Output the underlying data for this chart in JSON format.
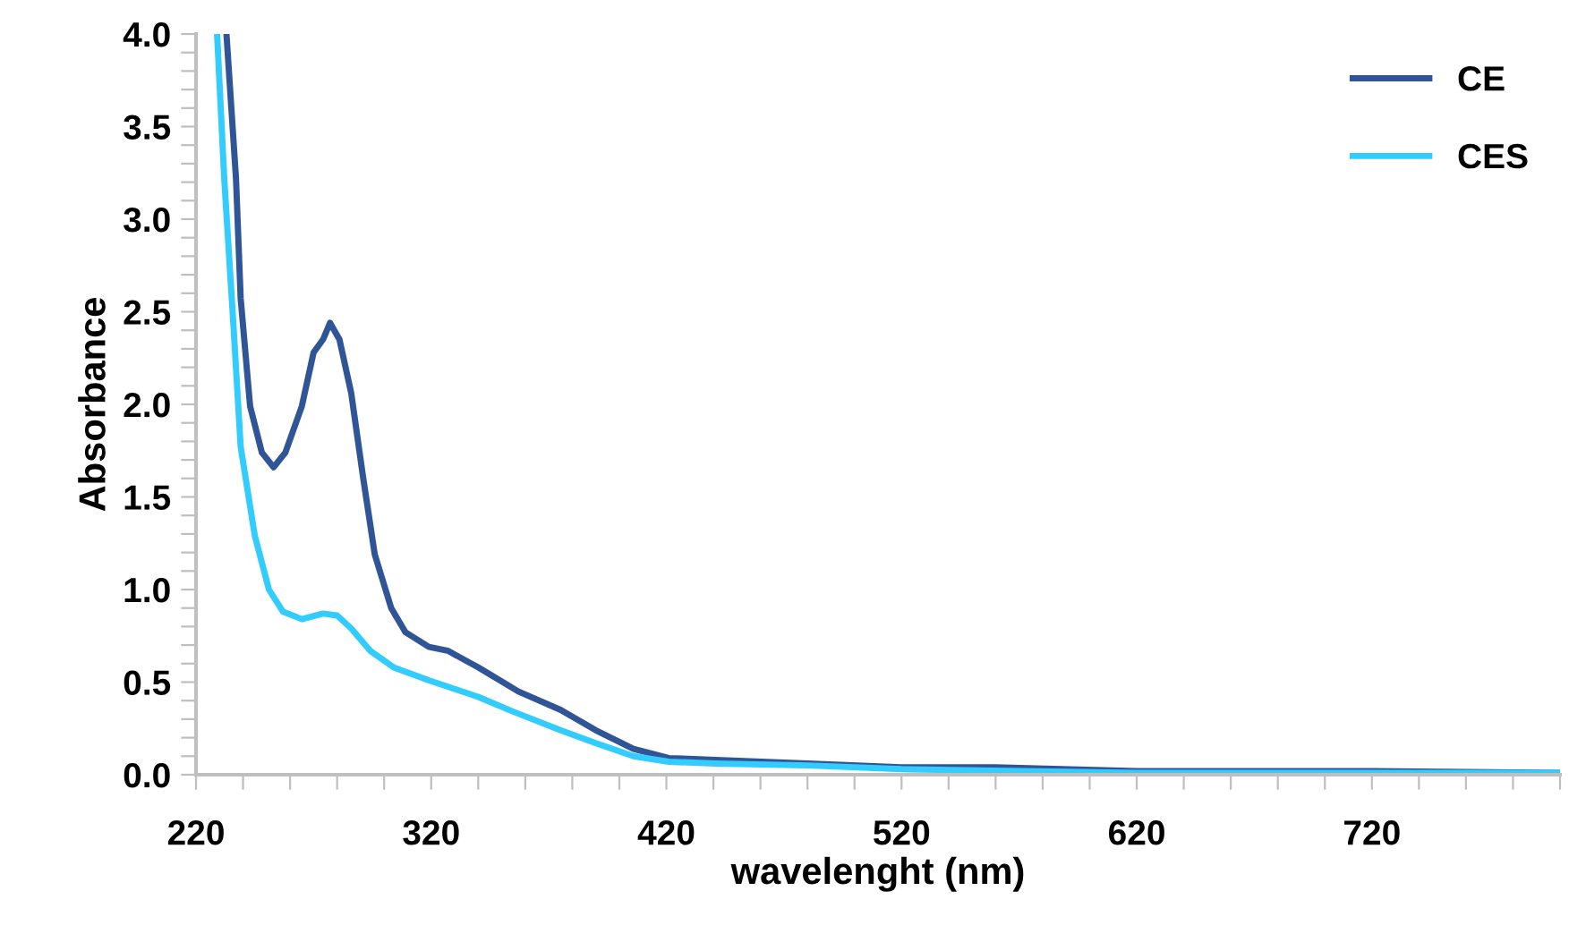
{
  "chart_data": {
    "type": "line",
    "xlabel": "wavelenght (nm)",
    "ylabel": "Absorbance",
    "xlim": [
      220,
      800
    ],
    "ylim": [
      0,
      4.0
    ],
    "xticks": [
      220,
      {
        "value": 240,
        "label": null
      },
      {
        "value": 260,
        "label": null
      },
      {
        "value": 280,
        "label": null
      },
      {
        "value": 300,
        "label": null
      },
      320,
      {
        "value": 340,
        "label": null
      },
      {
        "value": 360,
        "label": null
      },
      {
        "value": 380,
        "label": null
      },
      {
        "value": 400,
        "label": null
      },
      420,
      {
        "value": 440,
        "label": null
      },
      {
        "value": 460,
        "label": null
      },
      {
        "value": 480,
        "label": null
      },
      {
        "value": 500,
        "label": null
      },
      520,
      {
        "value": 540,
        "label": null
      },
      {
        "value": 560,
        "label": null
      },
      {
        "value": 580,
        "label": null
      },
      {
        "value": 600,
        "label": null
      },
      620,
      {
        "value": 640,
        "label": null
      },
      {
        "value": 660,
        "label": null
      },
      {
        "value": 680,
        "label": null
      },
      {
        "value": 700,
        "label": null
      },
      720,
      {
        "value": 740,
        "label": null
      },
      {
        "value": 760,
        "label": null
      },
      {
        "value": 780,
        "label": null
      },
      {
        "value": 800,
        "label": null
      }
    ],
    "yticks": [
      {
        "value": 0,
        "label": "0.0"
      },
      {
        "value": 0.1,
        "label": null
      },
      {
        "value": 0.2,
        "label": null
      },
      {
        "value": 0.3,
        "label": null
      },
      {
        "value": 0.4,
        "label": null
      },
      0.5,
      {
        "value": 0.6,
        "label": null
      },
      {
        "value": 0.7,
        "label": null
      },
      {
        "value": 0.8,
        "label": null
      },
      {
        "value": 0.9,
        "label": null
      },
      {
        "value": 1,
        "label": "1.0"
      },
      {
        "value": 1.1,
        "label": null
      },
      {
        "value": 1.2,
        "label": null
      },
      {
        "value": 1.3,
        "label": null
      },
      {
        "value": 1.4,
        "label": null
      },
      1.5,
      {
        "value": 1.6,
        "label": null
      },
      {
        "value": 1.7,
        "label": null
      },
      {
        "value": 1.8,
        "label": null
      },
      {
        "value": 1.9,
        "label": null
      },
      {
        "value": 2,
        "label": "2.0"
      },
      {
        "value": 2.1,
        "label": null
      },
      {
        "value": 2.2,
        "label": null
      },
      {
        "value": 2.3,
        "label": null
      },
      {
        "value": 2.4,
        "label": null
      },
      2.5,
      {
        "value": 2.6,
        "label": null
      },
      {
        "value": 2.7,
        "label": null
      },
      {
        "value": 2.8,
        "label": null
      },
      {
        "value": 2.9,
        "label": null
      },
      {
        "value": 3,
        "label": "3.0"
      },
      {
        "value": 3.1,
        "label": null
      },
      {
        "value": 3.2,
        "label": null
      },
      {
        "value": 3.3,
        "label": null
      },
      {
        "value": 3.4,
        "label": null
      },
      3.5,
      {
        "value": 3.6,
        "label": null
      },
      {
        "value": 3.7,
        "label": null
      },
      {
        "value": 3.8,
        "label": null
      },
      {
        "value": 3.9,
        "label": null
      },
      {
        "value": 4,
        "label": "4.0"
      }
    ],
    "grid": false,
    "legend": "top right",
    "marker": "none",
    "line_style": "solid",
    "series": [
      {
        "name": "CE",
        "color": "#2f5597",
        "x": [
          233,
          237,
          239,
          243,
          248,
          253,
          258,
          265,
          270,
          274,
          277,
          281,
          286,
          291,
          296,
          303,
          309,
          319,
          327,
          340,
          357,
          375,
          390,
          406,
          421,
          441,
          480,
          520,
          560,
          620,
          720,
          800
        ],
        "values": [
          3.99,
          3.22,
          2.57,
          1.99,
          1.74,
          1.66,
          1.74,
          1.99,
          2.28,
          2.35,
          2.44,
          2.35,
          2.06,
          1.61,
          1.19,
          0.9,
          0.77,
          0.69,
          0.67,
          0.58,
          0.45,
          0.35,
          0.24,
          0.14,
          0.09,
          0.08,
          0.06,
          0.04,
          0.04,
          0.02,
          0.02,
          0.01
        ]
      },
      {
        "name": "CES",
        "color": "#33ccff",
        "x": [
          229,
          232,
          236,
          239,
          245,
          251,
          257,
          265,
          274,
          280,
          286,
          294,
          304,
          319,
          340,
          355,
          375,
          390,
          406,
          421,
          441,
          480,
          520,
          620,
          720,
          800
        ],
        "values": [
          3.99,
          3.22,
          2.41,
          1.77,
          1.29,
          1.0,
          0.88,
          0.84,
          0.87,
          0.86,
          0.79,
          0.67,
          0.58,
          0.51,
          0.42,
          0.34,
          0.24,
          0.17,
          0.1,
          0.07,
          0.06,
          0.05,
          0.03,
          0.01,
          0.01,
          0.01
        ]
      }
    ]
  }
}
